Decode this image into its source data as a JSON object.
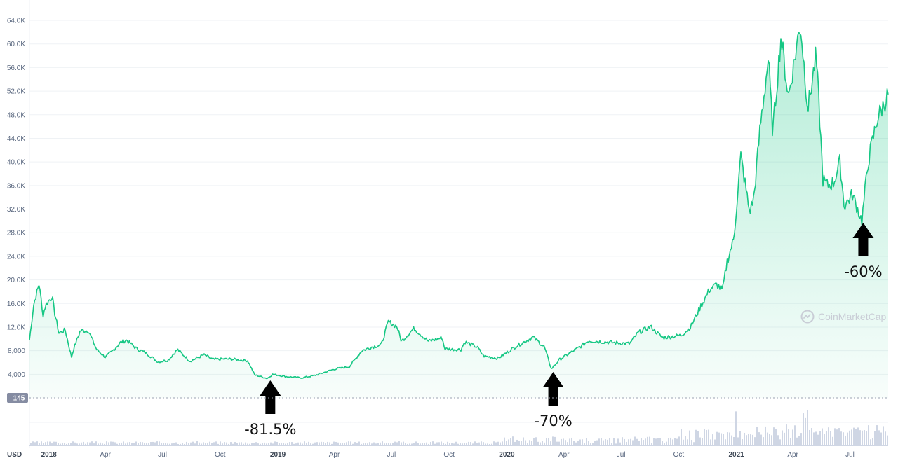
{
  "currency_label": "USD",
  "watermark": "CoinMarketCap",
  "volume_badge": "145",
  "colors": {
    "line": "#16c784",
    "area_top": "#16c784",
    "volume": "#cfd6e4",
    "badge": "#858ca2",
    "arrow": "#000000"
  },
  "chart_data": {
    "type": "area",
    "title": "",
    "xlabel": "",
    "ylabel": "",
    "x_range": [
      "2017-12-01",
      "2021-08-31"
    ],
    "ylim": [
      0,
      64000
    ],
    "y_ticks": [
      4000,
      8000,
      12000,
      16000,
      20000,
      24000,
      28000,
      32000,
      36000,
      40000,
      44000,
      48000,
      52000,
      56000,
      60000,
      64000
    ],
    "y_tick_labels": [
      "4,000",
      "8,000",
      "12.0K",
      "16.0K",
      "20.0K",
      "24.0K",
      "28.0K",
      "32.0K",
      "36.0K",
      "40.0K",
      "44.0K",
      "48.0K",
      "52.0K",
      "56.0K",
      "60.0K",
      "64.0K"
    ],
    "x_ticks": [
      {
        "date": "2018-01-01",
        "label": "2018",
        "year": true
      },
      {
        "date": "2018-04-01",
        "label": "Apr"
      },
      {
        "date": "2018-07-01",
        "label": "Jul"
      },
      {
        "date": "2018-10-01",
        "label": "Oct"
      },
      {
        "date": "2019-01-01",
        "label": "2019",
        "year": true
      },
      {
        "date": "2019-04-01",
        "label": "Apr"
      },
      {
        "date": "2019-07-01",
        "label": "Jul"
      },
      {
        "date": "2019-10-01",
        "label": "Oct"
      },
      {
        "date": "2020-01-01",
        "label": "2020",
        "year": true
      },
      {
        "date": "2020-04-01",
        "label": "Apr"
      },
      {
        "date": "2020-07-01",
        "label": "Jul"
      },
      {
        "date": "2020-10-01",
        "label": "Oct"
      },
      {
        "date": "2021-01-01",
        "label": "2021",
        "year": true
      },
      {
        "date": "2021-04-01",
        "label": "Apr"
      },
      {
        "date": "2021-07-01",
        "label": "Jul"
      }
    ],
    "series": [
      {
        "values": [
          [
            "2017-12-01",
            9800
          ],
          [
            "2017-12-08",
            16000
          ],
          [
            "2017-12-17",
            19500
          ],
          [
            "2017-12-22",
            13800
          ],
          [
            "2017-12-27",
            15800
          ],
          [
            "2018-01-06",
            17200
          ],
          [
            "2018-01-10",
            14500
          ],
          [
            "2018-01-17",
            11000
          ],
          [
            "2018-01-27",
            11500
          ],
          [
            "2018-02-06",
            6900
          ],
          [
            "2018-02-10",
            8500
          ],
          [
            "2018-02-20",
            11400
          ],
          [
            "2018-03-05",
            11400
          ],
          [
            "2018-03-18",
            8200
          ],
          [
            "2018-04-01",
            6900
          ],
          [
            "2018-04-12",
            7900
          ],
          [
            "2018-04-25",
            9400
          ],
          [
            "2018-05-05",
            9800
          ],
          [
            "2018-05-20",
            8400
          ],
          [
            "2018-06-05",
            7600
          ],
          [
            "2018-06-24",
            6100
          ],
          [
            "2018-07-10",
            6400
          ],
          [
            "2018-07-25",
            8200
          ],
          [
            "2018-08-14",
            6200
          ],
          [
            "2018-09-05",
            7300
          ],
          [
            "2018-09-20",
            6500
          ],
          [
            "2018-10-15",
            6600
          ],
          [
            "2018-11-14",
            6300
          ],
          [
            "2018-11-25",
            3900
          ],
          [
            "2018-12-15",
            3300
          ],
          [
            "2018-12-24",
            4000
          ],
          [
            "2019-01-15",
            3600
          ],
          [
            "2019-02-08",
            3400
          ],
          [
            "2019-03-01",
            3800
          ],
          [
            "2019-04-02",
            4900
          ],
          [
            "2019-04-25",
            5300
          ],
          [
            "2019-05-15",
            8000
          ],
          [
            "2019-05-30",
            8600
          ],
          [
            "2019-06-15",
            9000
          ],
          [
            "2019-06-26",
            12900
          ],
          [
            "2019-07-10",
            12100
          ],
          [
            "2019-07-17",
            9600
          ],
          [
            "2019-08-06",
            11800
          ],
          [
            "2019-08-29",
            9600
          ],
          [
            "2019-09-20",
            10200
          ],
          [
            "2019-09-24",
            8300
          ],
          [
            "2019-10-20",
            8200
          ],
          [
            "2019-10-26",
            9500
          ],
          [
            "2019-11-15",
            8600
          ],
          [
            "2019-11-25",
            7100
          ],
          [
            "2019-12-18",
            6700
          ],
          [
            "2020-01-15",
            8700
          ],
          [
            "2020-02-12",
            10300
          ],
          [
            "2020-03-01",
            8600
          ],
          [
            "2020-03-12",
            4900
          ],
          [
            "2020-03-25",
            6500
          ],
          [
            "2020-04-29",
            8800
          ],
          [
            "2020-05-10",
            9700
          ],
          [
            "2020-06-15",
            9400
          ],
          [
            "2020-07-15",
            9200
          ],
          [
            "2020-07-28",
            11000
          ],
          [
            "2020-08-17",
            12100
          ],
          [
            "2020-09-05",
            10200
          ],
          [
            "2020-10-05",
            10600
          ],
          [
            "2020-10-20",
            12000
          ],
          [
            "2020-11-05",
            15500
          ],
          [
            "2020-11-20",
            18500
          ],
          [
            "2020-12-01",
            19200
          ],
          [
            "2020-12-10",
            18200
          ],
          [
            "2020-12-17",
            23000
          ],
          [
            "2020-12-28",
            27000
          ],
          [
            "2021-01-08",
            41000
          ],
          [
            "2021-01-22",
            31500
          ],
          [
            "2021-01-29",
            34000
          ],
          [
            "2021-02-08",
            46000
          ],
          [
            "2021-02-21",
            57500
          ],
          [
            "2021-02-28",
            45000
          ],
          [
            "2021-03-13",
            61200
          ],
          [
            "2021-03-25",
            51000
          ],
          [
            "2021-04-13",
            63500
          ],
          [
            "2021-04-25",
            49000
          ],
          [
            "2021-05-08",
            58000
          ],
          [
            "2021-05-13",
            49000
          ],
          [
            "2021-05-19",
            37000
          ],
          [
            "2021-05-25",
            36000
          ],
          [
            "2021-06-05",
            36500
          ],
          [
            "2021-06-15",
            40000
          ],
          [
            "2021-06-22",
            32500
          ],
          [
            "2021-07-05",
            34500
          ],
          [
            "2021-07-20",
            30000
          ],
          [
            "2021-07-30",
            40000
          ],
          [
            "2021-08-14",
            47500
          ],
          [
            "2021-08-23",
            49500
          ],
          [
            "2021-08-31",
            51500
          ]
        ]
      }
    ],
    "annotations": [
      {
        "date": "2018-12-20",
        "text": "-81.5%"
      },
      {
        "date": "2020-03-15",
        "text": "-70%"
      },
      {
        "date": "2021-07-20",
        "text": "-60%"
      }
    ]
  }
}
